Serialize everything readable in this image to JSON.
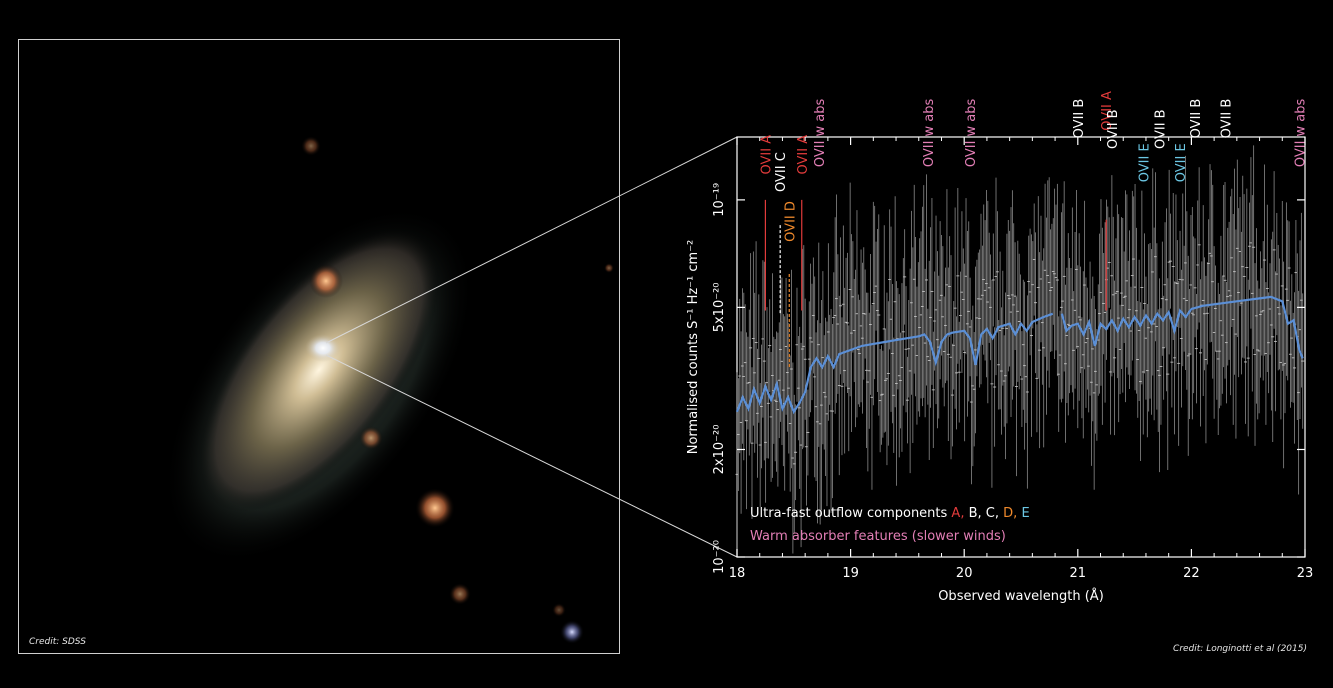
{
  "credits": {
    "left": "Credit: SDSS",
    "right": "Credit: Longinotti et al (2015)"
  },
  "colors": {
    "A": "#e23b3b",
    "B": "#ffffff",
    "C": "#ffffff",
    "D": "#f08a2c",
    "E": "#6cc7e4",
    "warm": "#e37fb6",
    "model": "#5b8fd6",
    "data": "#8a8a8a"
  },
  "chart_data": {
    "type": "line",
    "title": "",
    "xlabel": "Observed wavelength (Å)",
    "ylabel": "Normalised counts S⁻¹ Hz⁻¹ cm⁻²",
    "xlim": [
      18,
      23
    ],
    "ylim_log": [
      1e-20,
      1.5e-19
    ],
    "yscale": "log",
    "x_ticks": [
      "18",
      "19",
      "20",
      "21",
      "22",
      "23"
    ],
    "y_ticks": [
      {
        "label": "10⁻¹⁹",
        "value": 1e-19
      },
      {
        "label": "5x10⁻²⁰",
        "value": 5e-20
      },
      {
        "label": "2x10⁻²⁰",
        "value": 2e-20
      },
      {
        "label": "10⁻²⁰",
        "value": 1e-20
      }
    ],
    "legend": {
      "line1_prefix": "Ultra-fast outflow components ",
      "A": "A,",
      "B": "B,",
      "C": "C,",
      "D": "D,",
      "E": "E",
      "line2": "Warm absorber features (slower winds)"
    },
    "model_series": {
      "name": "model",
      "x": [
        18.0,
        18.05,
        18.1,
        18.15,
        18.2,
        18.25,
        18.3,
        18.35,
        18.4,
        18.45,
        18.5,
        18.55,
        18.6,
        18.65,
        18.7,
        18.75,
        18.8,
        18.85,
        18.9,
        18.95,
        19.0,
        19.1,
        19.2,
        19.3,
        19.4,
        19.5,
        19.6,
        19.65,
        19.7,
        19.75,
        19.8,
        19.85,
        19.9,
        20.0,
        20.05,
        20.1,
        20.15,
        20.2,
        20.25,
        20.3,
        20.4,
        20.45,
        20.5,
        20.55,
        20.6,
        20.7,
        20.78
      ],
      "y": [
        2.55e-20,
        2.8e-20,
        2.6e-20,
        2.95e-20,
        2.7e-20,
        3e-20,
        2.75e-20,
        3.05e-20,
        2.6e-20,
        2.8e-20,
        2.55e-20,
        2.7e-20,
        2.9e-20,
        3.4e-20,
        3.6e-20,
        3.4e-20,
        3.65e-20,
        3.4e-20,
        3.7e-20,
        3.75e-20,
        3.8e-20,
        3.9e-20,
        3.95e-20,
        4e-20,
        4.05e-20,
        4.1e-20,
        4.15e-20,
        4.2e-20,
        4e-20,
        3.5e-20,
        4e-20,
        4.2e-20,
        4.25e-20,
        4.3e-20,
        4.1e-20,
        3.45e-20,
        4.2e-20,
        4.35e-20,
        4.1e-20,
        4.4e-20,
        4.5e-20,
        4.2e-20,
        4.5e-20,
        4.3e-20,
        4.55e-20,
        4.7e-20,
        4.8e-20
      ]
    },
    "model_series_2": {
      "name": "model",
      "x": [
        20.86,
        20.9,
        20.95,
        21.0,
        21.05,
        21.1,
        21.15,
        21.2,
        21.25,
        21.3,
        21.35,
        21.4,
        21.45,
        21.5,
        21.55,
        21.6,
        21.65,
        21.7,
        21.75,
        21.8,
        21.85,
        21.9,
        21.95,
        22.0,
        22.05,
        22.1,
        22.2,
        22.3,
        22.4,
        22.5,
        22.6,
        22.7,
        22.8,
        22.85,
        22.9,
        22.95,
        22.98
      ],
      "y": [
        4.8e-20,
        4.3e-20,
        4.45e-20,
        4.5e-20,
        4.2e-20,
        4.55e-20,
        3.9e-20,
        4.5e-20,
        4.35e-20,
        4.6e-20,
        4.3e-20,
        4.65e-20,
        4.4e-20,
        4.7e-20,
        4.45e-20,
        4.75e-20,
        4.5e-20,
        4.8e-20,
        4.6e-20,
        4.85e-20,
        4.3e-20,
        4.9e-20,
        4.7e-20,
        4.95e-20,
        5e-20,
        5.05e-20,
        5.1e-20,
        5.15e-20,
        5.2e-20,
        5.25e-20,
        5.3e-20,
        5.35e-20,
        5.2e-20,
        4.5e-20,
        4.6e-20,
        3.8e-20,
        3.6e-20
      ]
    },
    "line_markers": [
      {
        "label": "OVII A",
        "x": 18.25,
        "group": "A",
        "dash": "solid",
        "label_y": 9.5e-20,
        "line_top": 1e-19,
        "line_bottom": 4.9e-20
      },
      {
        "label": "OVII C",
        "x": 18.38,
        "group": "C",
        "dash": "dashed",
        "label_y": 8.5e-20,
        "line_top": 8.5e-20,
        "line_bottom": 4.8e-20
      },
      {
        "label": "OVII D",
        "x": 18.46,
        "group": "D",
        "dash": "dashed",
        "label_y": 6.2e-20,
        "line_top": 6.2e-20,
        "line_bottom": 3.4e-20
      },
      {
        "label": "OVII A",
        "x": 18.57,
        "group": "A",
        "dash": "solid",
        "label_y": 9.5e-20,
        "line_top": 1e-19,
        "line_bottom": 4.9e-20
      },
      {
        "label": "OVII w abs",
        "x": 18.72,
        "group": "warm",
        "dash": "none",
        "label_y": 1.2e-19
      },
      {
        "label": "OVII w abs",
        "x": 19.68,
        "group": "warm",
        "dash": "none",
        "label_y": 1.2e-19
      },
      {
        "label": "OVII w abs",
        "x": 20.05,
        "group": "warm",
        "dash": "none",
        "label_y": 1.2e-19
      },
      {
        "label": "OVII B",
        "x": 21.0,
        "group": "B",
        "dash": "none",
        "label_y": 1.2e-19
      },
      {
        "label": "OVII A",
        "x": 21.25,
        "group": "A",
        "dash": "solid",
        "label_y": 1.26e-19,
        "line_top": 8.8e-20,
        "line_bottom": 4.9e-20
      },
      {
        "label": "OVII B",
        "x": 21.3,
        "group": "B",
        "dash": "none",
        "label_y": 1.12e-19
      },
      {
        "label": "OVII E",
        "x": 21.58,
        "group": "E",
        "dash": "none",
        "label_y": 9e-20
      },
      {
        "label": "OVII B",
        "x": 21.72,
        "group": "B",
        "dash": "none",
        "label_y": 1.12e-19
      },
      {
        "label": "OVII E",
        "x": 21.9,
        "group": "E",
        "dash": "none",
        "label_y": 9e-20
      },
      {
        "label": "OVII B",
        "x": 22.03,
        "group": "B",
        "dash": "none",
        "label_y": 1.2e-19
      },
      {
        "label": "OVII B",
        "x": 22.3,
        "group": "B",
        "dash": "none",
        "label_y": 1.2e-19
      },
      {
        "label": "OVII w abs",
        "x": 22.95,
        "group": "warm",
        "dash": "none",
        "label_y": 1.2e-19
      }
    ]
  }
}
